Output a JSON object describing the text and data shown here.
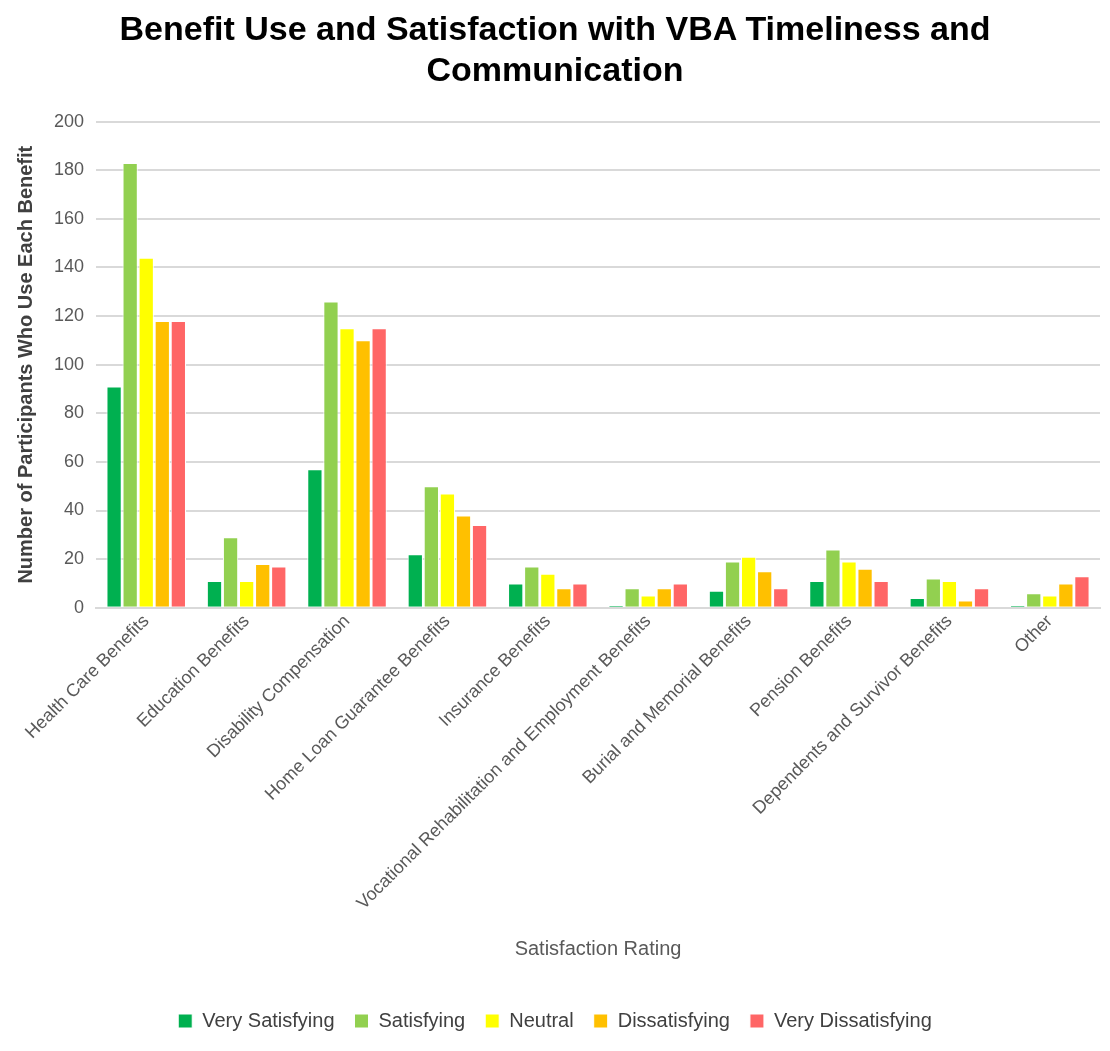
{
  "chart_data": {
    "type": "bar",
    "title": "Benefit Use and Satisfaction with VBA Timeliness and Communication",
    "xlabel": "Satisfaction Rating",
    "ylabel": "Number of Participants Who Use Each Benefit",
    "categories": [
      "Health Care Benefits",
      "Education Benefits",
      "Disability Compensation",
      "Home Loan Guarantee Benefits",
      "Insurance Benefits",
      "Vocational Rehabilitation and Employment Benefits",
      "Burial and Memorial Benefits",
      "Pension Benefits",
      "Dependents and Survivor Benefits",
      "Other"
    ],
    "series": [
      {
        "name": "Very Satisfying",
        "color": "#00b050",
        "values": [
          91,
          11,
          57,
          22,
          10,
          1,
          7,
          11,
          4,
          1
        ]
      },
      {
        "name": "Satisfying",
        "color": "#92d050",
        "values": [
          183,
          29,
          126,
          50,
          17,
          8,
          19,
          24,
          12,
          6
        ]
      },
      {
        "name": "Neutral",
        "color": "#ffff00",
        "values": [
          144,
          11,
          115,
          47,
          14,
          5,
          21,
          19,
          11,
          5
        ]
      },
      {
        "name": "Dissatisfying",
        "color": "#ffc000",
        "values": [
          118,
          18,
          110,
          38,
          8,
          8,
          15,
          16,
          3,
          10
        ]
      },
      {
        "name": "Very Dissatisfying",
        "color": "#ff6666",
        "values": [
          118,
          17,
          115,
          34,
          10,
          10,
          8,
          11,
          8,
          13
        ]
      }
    ],
    "ylim": [
      0,
      200
    ],
    "yticks": [
      0,
      20,
      40,
      60,
      80,
      100,
      120,
      140,
      160,
      180,
      200
    ],
    "grid": "y",
    "legend": "bottom"
  }
}
